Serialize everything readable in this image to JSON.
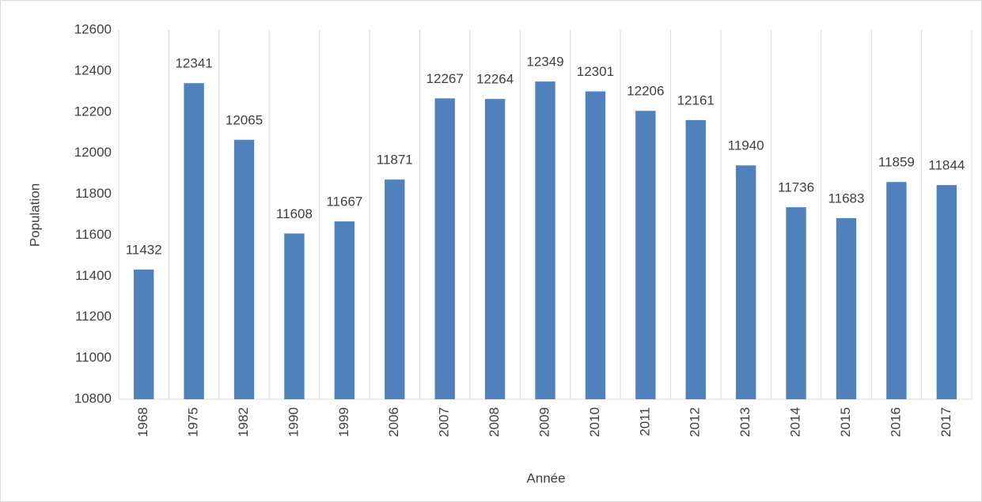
{
  "chart_data": {
    "type": "bar",
    "x_label": "Année",
    "y_label": "Population",
    "categories": [
      "1968",
      "1975",
      "1982",
      "1990",
      "1999",
      "2006",
      "2007",
      "2008",
      "2009",
      "2010",
      "2011",
      "2012",
      "2013",
      "2014",
      "2015",
      "2016",
      "2017"
    ],
    "values": [
      11432,
      12341,
      12065,
      11608,
      11667,
      11871,
      12267,
      12264,
      12349,
      12301,
      12206,
      12161,
      11940,
      11736,
      11683,
      11859,
      11844
    ],
    "color": "#4f81bd",
    "ylim": [
      10800,
      12600
    ],
    "yticks": [
      10800,
      11000,
      11200,
      11400,
      11600,
      11800,
      12000,
      12200,
      12400,
      12600
    ],
    "xgrid": true
  }
}
